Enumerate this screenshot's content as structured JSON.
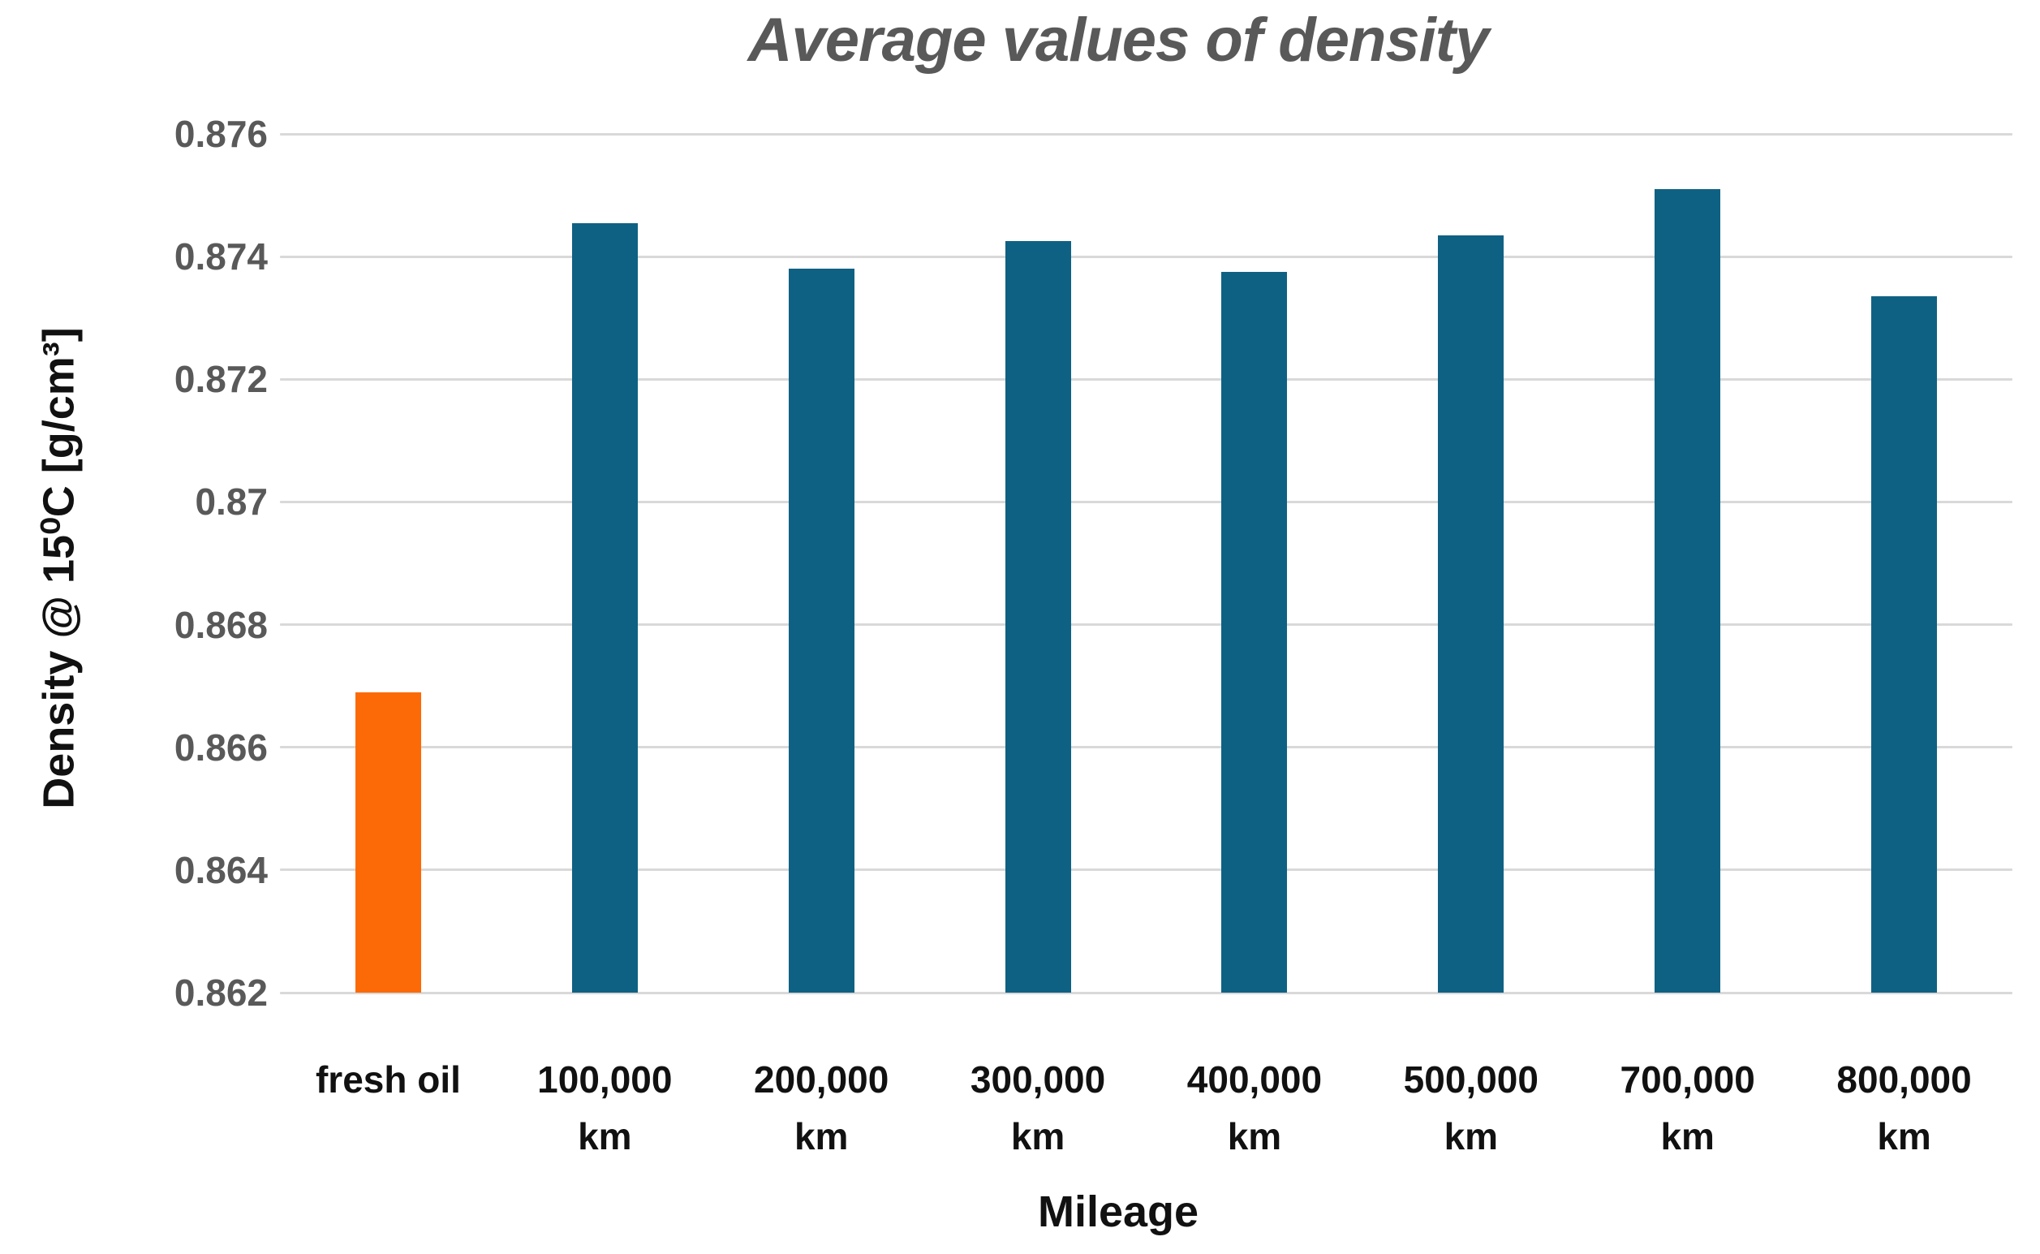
{
  "chart_data": {
    "type": "bar",
    "title": "Average values of density",
    "xlabel": "Mileage",
    "ylabel": "Density @ 15⁰C [g/cm³]",
    "categories": [
      {
        "slug": "fresh-oil",
        "lines": [
          "fresh oil"
        ]
      },
      {
        "slug": "100000-km",
        "lines": [
          "100,000",
          "km"
        ]
      },
      {
        "slug": "200000-km",
        "lines": [
          "200,000",
          "km"
        ]
      },
      {
        "slug": "300000-km",
        "lines": [
          "300,000",
          "km"
        ]
      },
      {
        "slug": "400000-km",
        "lines": [
          "400,000",
          "km"
        ]
      },
      {
        "slug": "500000-km",
        "lines": [
          "500,000",
          "km"
        ]
      },
      {
        "slug": "700000-km",
        "lines": [
          "700,000",
          "km"
        ]
      },
      {
        "slug": "800000-km",
        "lines": [
          "800,000",
          "km"
        ]
      }
    ],
    "values": [
      0.8669,
      0.87455,
      0.8738,
      0.87425,
      0.87375,
      0.87435,
      0.8751,
      0.87335
    ],
    "ylim": [
      0.862,
      0.876
    ],
    "ytick_values": [
      0.862,
      0.864,
      0.866,
      0.868,
      0.87,
      0.872,
      0.874,
      0.876
    ],
    "ytick_labels": [
      "0.862",
      "0.864",
      "0.866",
      "0.868",
      "0.87",
      "0.87 2",
      "0.874",
      "0.876"
    ],
    "grid": true,
    "legend": "none",
    "colors": {
      "bar_default": "#0F6183",
      "bar_highlight": "#FB6A06",
      "gridline": "#D9D9D9",
      "title_text": "#595959",
      "ytick_text": "#595959",
      "xtick_text": "#111111"
    },
    "highlight_index": 0
  }
}
